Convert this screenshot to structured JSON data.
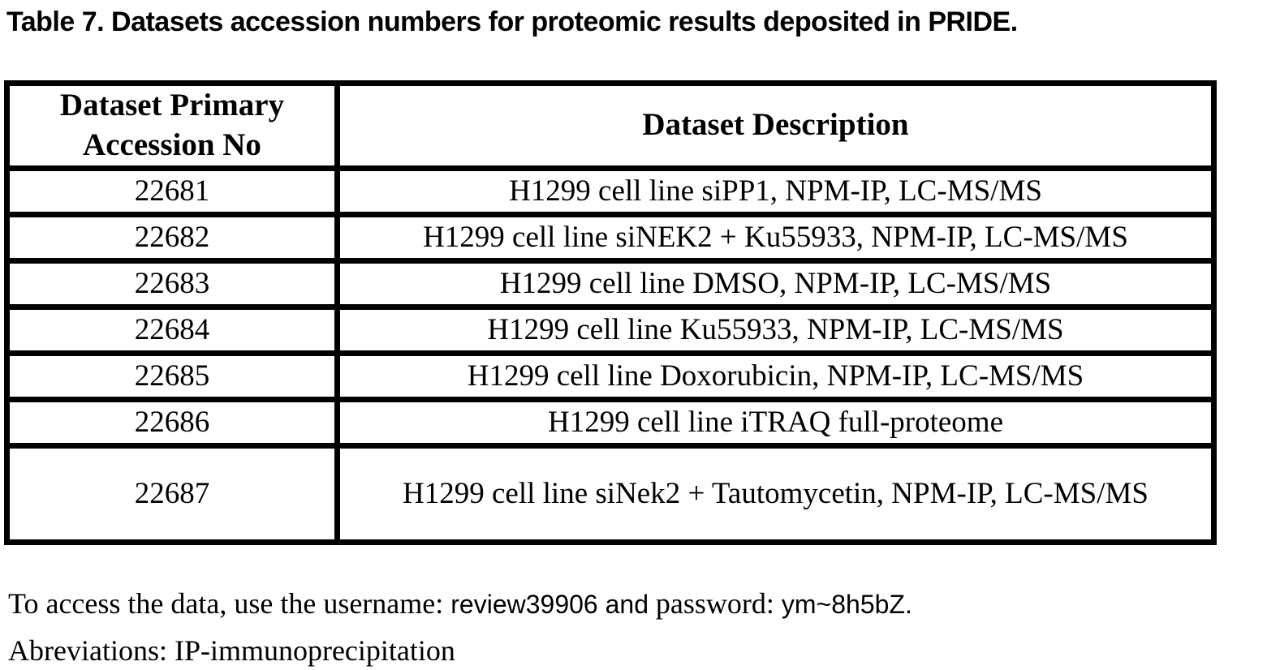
{
  "title": "Table 7. Datasets accession numbers for proteomic results deposited in PRIDE.",
  "colors": {
    "text": "#000000",
    "background": "#ffffff",
    "table_border": "#000000"
  },
  "table": {
    "header": {
      "accession_line1": "Dataset Primary",
      "accession_line2": "Accession No",
      "description": "Dataset Description"
    },
    "rows": [
      {
        "accession": "22681",
        "description": "H1299 cell line siPP1, NPM-IP, LC-MS/MS"
      },
      {
        "accession": "22682",
        "description": "H1299 cell line siNEK2 + Ku55933, NPM-IP, LC-MS/MS"
      },
      {
        "accession": "22683",
        "description": "H1299 cell line DMSO, NPM-IP, LC-MS/MS"
      },
      {
        "accession": "22684",
        "description": "H1299 cell line Ku55933, NPM-IP, LC-MS/MS"
      },
      {
        "accession": "22685",
        "description": "H1299 cell line Doxorubicin, NPM-IP, LC-MS/MS"
      },
      {
        "accession": "22686",
        "description": "H1299 cell line iTRAQ full-proteome"
      },
      {
        "accession": "22687",
        "description": "H1299 cell line siNek2 + Tautomycetin, NPM-IP, LC-MS/MS"
      }
    ]
  },
  "footer": {
    "line1": {
      "part1_serif": "To access the data, use the username: ",
      "part2_sans": "review39906 and ",
      "part3_serif": "password: ",
      "part4_sans": "ym~8h5bZ."
    },
    "line2": "Abreviations: IP-immunoprecipitation"
  }
}
